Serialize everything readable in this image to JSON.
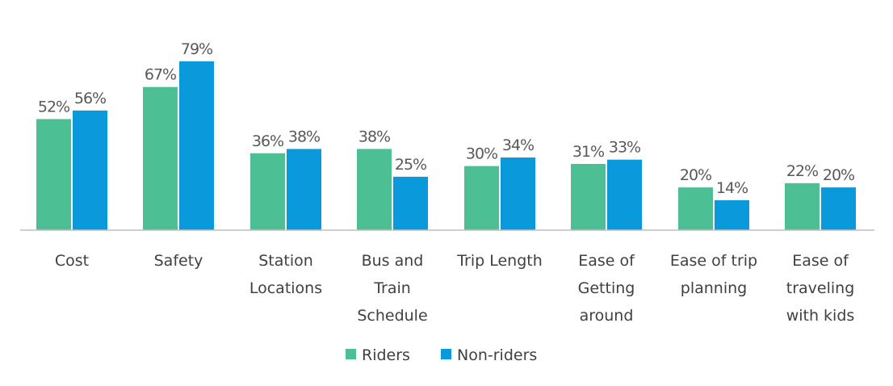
{
  "chart_data": {
    "type": "bar",
    "categories": [
      [
        "Cost"
      ],
      [
        "Safety"
      ],
      [
        "Station",
        "Locations"
      ],
      [
        "Bus and",
        "Train",
        "Schedule"
      ],
      [
        "Trip Length"
      ],
      [
        "Ease of",
        "Getting",
        "around"
      ],
      [
        "Ease of trip",
        "planning"
      ],
      [
        "Ease of",
        "traveling",
        "with kids"
      ]
    ],
    "series": [
      {
        "name": "Riders",
        "color": "#4DBF94",
        "values": [
          52,
          67,
          36,
          38,
          30,
          31,
          20,
          22
        ],
        "labels": [
          "52%",
          "67%",
          "36%",
          "38%",
          "30%",
          "31%",
          "20%",
          "22%"
        ]
      },
      {
        "name": "Non-riders",
        "color": "#0A9ADB",
        "values": [
          56,
          79,
          38,
          25,
          34,
          33,
          14,
          20
        ],
        "labels": [
          "56%",
          "79%",
          "38%",
          "25%",
          "34%",
          "33%",
          "14%",
          "20%"
        ]
      }
    ],
    "ylim": [
      0,
      100
    ],
    "grid": false,
    "legend": "bottom-center",
    "title": "",
    "xlabel": "",
    "ylabel": ""
  }
}
